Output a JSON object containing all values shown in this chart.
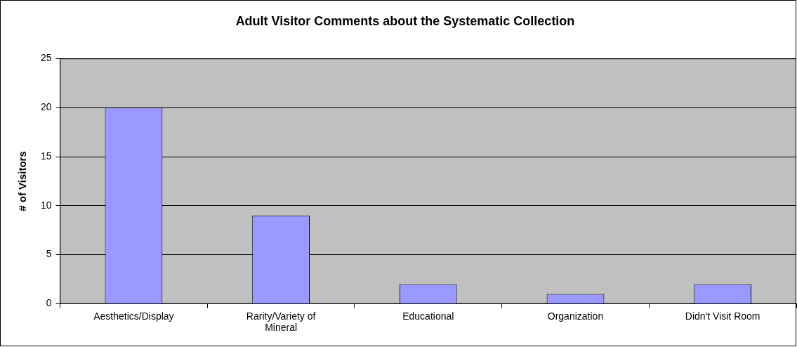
{
  "chart_data": {
    "type": "bar",
    "title": "Adult Visitor Comments about the Systematic Collection",
    "ylabel": "# of Visitors",
    "categories": [
      "Aesthetics/Display",
      "Rarity/Variety of Mineral",
      "Educational",
      "Organization",
      "Didn't Visit Room"
    ],
    "values": [
      20,
      9,
      2,
      1,
      2
    ],
    "color": "#9999ff",
    "ylim": [
      0,
      25
    ],
    "yticks": [
      0,
      5,
      10,
      15,
      20,
      25
    ],
    "grid": "y",
    "legend": false
  }
}
